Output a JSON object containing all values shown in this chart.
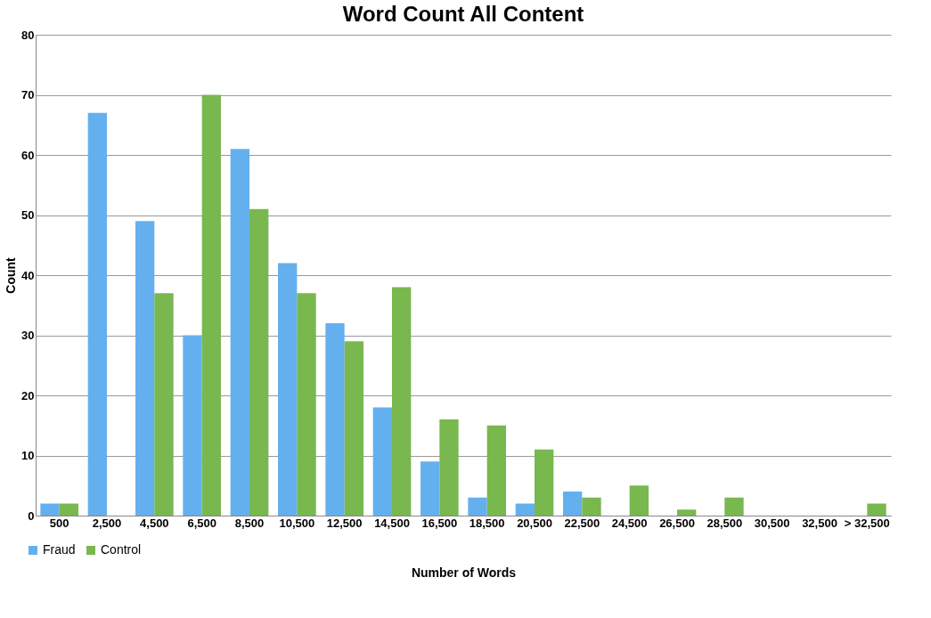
{
  "chart_data": {
    "type": "bar",
    "title": "Word Count All Content",
    "xlabel": "Number of Words",
    "ylabel": "Count",
    "categories": [
      "500",
      "2,500",
      "4,500",
      "6,500",
      "8,500",
      "10,500",
      "12,500",
      "14,500",
      "16,500",
      "18,500",
      "20,500",
      "22,500",
      "24,500",
      "26,500",
      "28,500",
      "30,500",
      "32,500",
      "> 32,500"
    ],
    "series": [
      {
        "name": "Fraud",
        "color": "#64b0ee",
        "values": [
          2,
          67,
          49,
          30,
          61,
          42,
          32,
          18,
          9,
          3,
          2,
          4,
          0,
          0,
          0,
          0,
          0,
          0
        ]
      },
      {
        "name": "Control",
        "color": "#78b84e",
        "values": [
          2,
          0,
          37,
          70,
          51,
          37,
          29,
          38,
          16,
          15,
          11,
          3,
          5,
          1,
          3,
          0,
          0,
          2
        ]
      }
    ],
    "ylim": [
      0,
      80
    ],
    "yticks": [
      0,
      10,
      20,
      30,
      40,
      50,
      60,
      70,
      80
    ],
    "grid": "y",
    "legend": "bottom left"
  }
}
